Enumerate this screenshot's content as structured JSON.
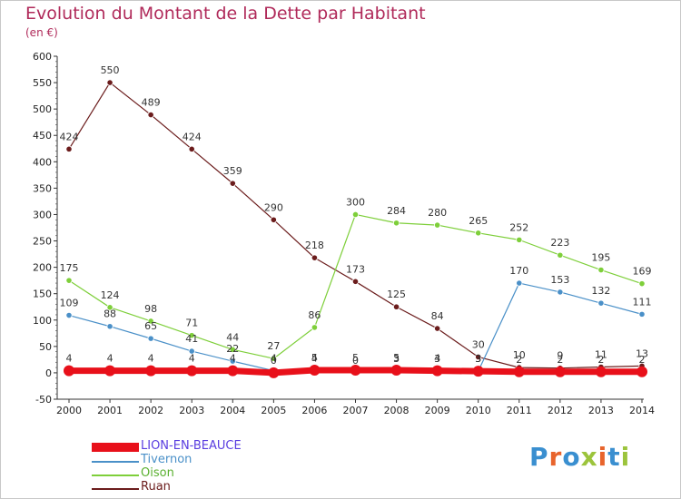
{
  "header": {
    "title": "Evolution du Montant de la Dette par Habitant",
    "subtitle": "(en €)"
  },
  "logo": {
    "text": "Proxiti",
    "colors": [
      "#3a8fd0",
      "#e8642c",
      "#3a8fd0",
      "#9cc43c",
      "#e8642c",
      "#3a8fd0",
      "#9cc43c"
    ]
  },
  "chart_data": {
    "type": "line",
    "title": "Evolution du Montant de la Dette par Habitant",
    "ylabel": "(en €)",
    "xlabel": "",
    "ylim": [
      -50,
      600
    ],
    "yticks": [
      -50,
      0,
      50,
      100,
      150,
      200,
      250,
      300,
      350,
      400,
      450,
      500,
      550,
      600
    ],
    "grid": false,
    "legend_position": "bottom-left",
    "x": [
      "2000",
      "2001",
      "2002",
      "2003",
      "2004",
      "2005",
      "2006",
      "2007",
      "2008",
      "2009",
      "2010",
      "2011",
      "2012",
      "2013",
      "2014"
    ],
    "series": [
      {
        "name": "Ruan",
        "color": "#6b1c1c",
        "values": [
          424,
          550,
          489,
          424,
          359,
          290,
          218,
          173,
          125,
          84,
          30,
          10,
          9,
          11,
          13
        ]
      },
      {
        "name": "Oison",
        "color": "#7ecf3a",
        "values": [
          175,
          124,
          98,
          71,
          44,
          27,
          86,
          300,
          284,
          280,
          265,
          252,
          223,
          195,
          169
        ]
      },
      {
        "name": "Tivernon",
        "color": "#4a90c8",
        "values": [
          109,
          88,
          65,
          41,
          22,
          4,
          4,
          0,
          3,
          3,
          3,
          170,
          153,
          132,
          111
        ]
      },
      {
        "name": "LION-EN-BEAUCE",
        "color": "#e8101a",
        "values": [
          4,
          4,
          4,
          4,
          4,
          0,
          5,
          5,
          5,
          4,
          3,
          2,
          2,
          2,
          2
        ]
      }
    ]
  }
}
